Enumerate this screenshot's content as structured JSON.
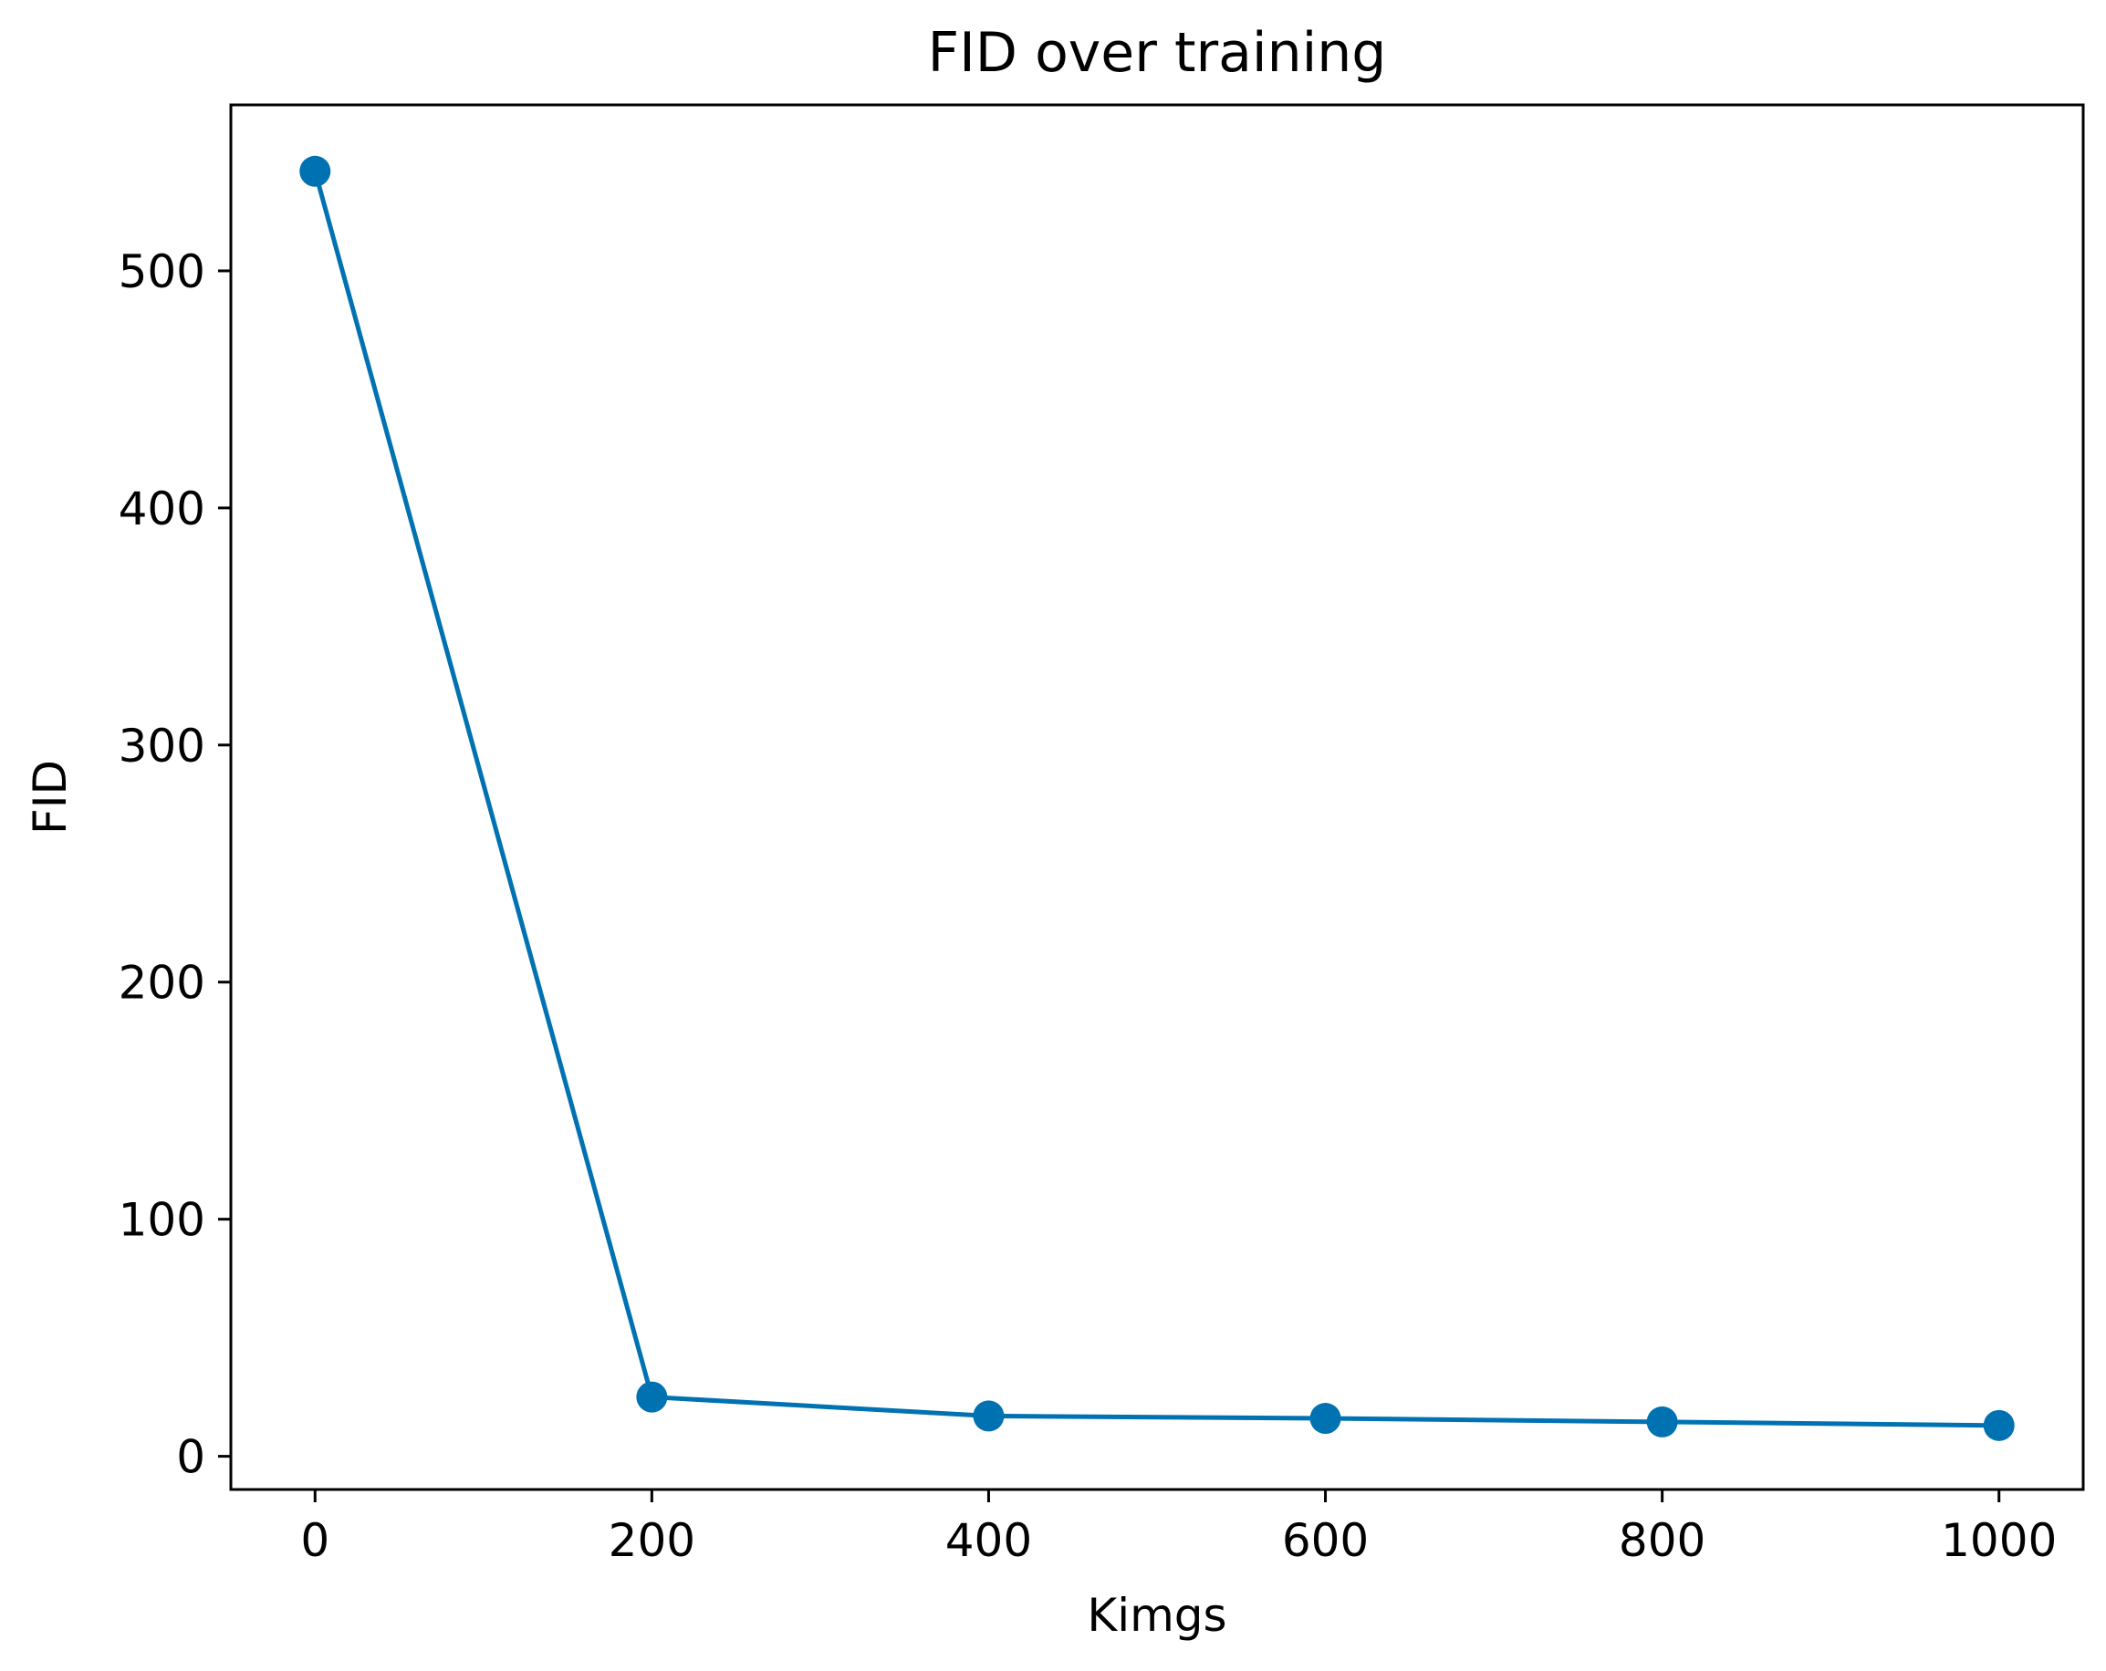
{
  "chart_data": {
    "type": "line",
    "title": "FID over training",
    "xlabel": "Kimgs",
    "ylabel": "FID",
    "x": [
      0,
      200,
      400,
      600,
      800,
      1000
    ],
    "series": [
      {
        "values": [
          542,
          25,
          17,
          16,
          14.5,
          13
        ],
        "color": "#0072B2",
        "marker": "circle"
      }
    ],
    "xlim": [
      -50,
      1050
    ],
    "ylim": [
      -14,
      570
    ],
    "xticks": [
      0,
      200,
      400,
      600,
      800,
      1000
    ],
    "xtick_labels": [
      "0",
      "200",
      "400",
      "600",
      "800",
      "1000"
    ],
    "yticks": [
      0,
      100,
      200,
      300,
      400,
      500
    ],
    "ytick_labels": [
      "0",
      "100",
      "200",
      "300",
      "400",
      "500"
    ],
    "grid": false,
    "legend": "none"
  }
}
